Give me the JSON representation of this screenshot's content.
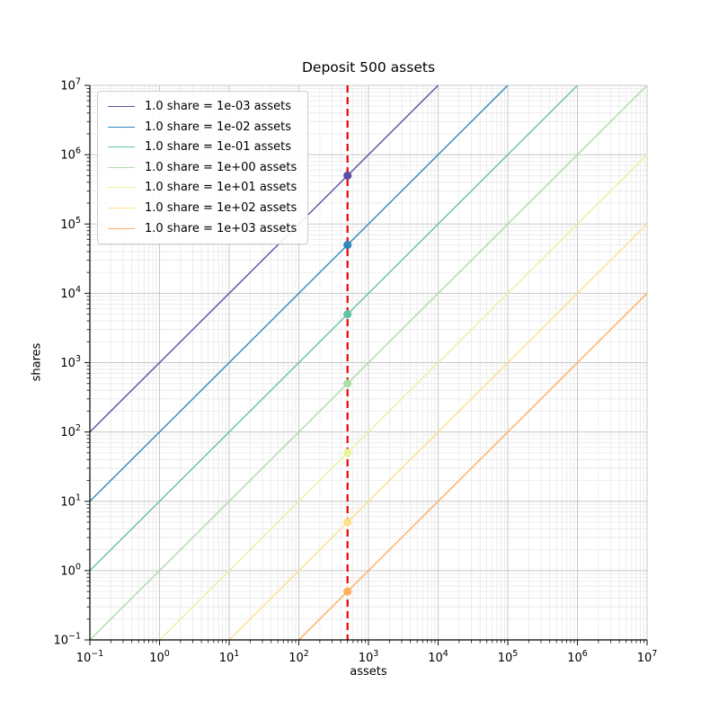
{
  "chart_data": {
    "type": "line",
    "title": "Deposit 500 assets",
    "xlabel": "assets",
    "ylabel": "shares",
    "xscale": "log",
    "yscale": "log",
    "xlim": [
      0.1,
      10000000
    ],
    "ylim": [
      0.1,
      10000000
    ],
    "tick_exponents": [
      -1,
      0,
      1,
      2,
      3,
      4,
      5,
      6,
      7
    ],
    "grid": "both",
    "legend_position": "upper-left",
    "deposit_assets": 500,
    "series": [
      {
        "label": "1.0 share = 1e-03 assets",
        "assets_per_share": 0.001,
        "color": "#5e4fa2",
        "point": {
          "x": 500,
          "y": 500000
        }
      },
      {
        "label": "1.0 share = 1e-02 assets",
        "assets_per_share": 0.01,
        "color": "#3288bd",
        "point": {
          "x": 500,
          "y": 50000
        }
      },
      {
        "label": "1.0 share = 1e-01 assets",
        "assets_per_share": 0.1,
        "color": "#66c2a5",
        "point": {
          "x": 500,
          "y": 5000
        }
      },
      {
        "label": "1.0 share = 1e+00 assets",
        "assets_per_share": 1,
        "color": "#abdda4",
        "point": {
          "x": 500,
          "y": 500
        }
      },
      {
        "label": "1.0 share = 1e+01 assets",
        "assets_per_share": 10,
        "color": "#e6f598",
        "point": {
          "x": 500,
          "y": 50
        }
      },
      {
        "label": "1.0 share = 1e+02 assets",
        "assets_per_share": 100,
        "color": "#fee08b",
        "point": {
          "x": 500,
          "y": 5
        }
      },
      {
        "label": "1.0 share = 1e+03 assets",
        "assets_per_share": 1000,
        "color": "#fdae61",
        "point": {
          "x": 500,
          "y": 0.5
        }
      }
    ],
    "vline": {
      "x": 500,
      "color": "#ee0000",
      "style": "dashed"
    },
    "colors": {
      "grid_major": "#c8c8c8",
      "grid_minor": "#e8e8e8",
      "spine": "#000000",
      "tick": "#222222"
    }
  }
}
